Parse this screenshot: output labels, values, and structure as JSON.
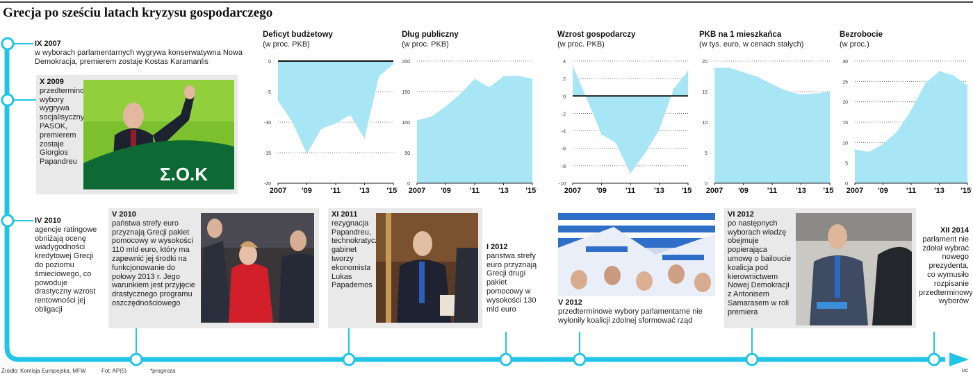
{
  "title": "Grecja po sześciu latach kryzysu gospodarczego",
  "colors": {
    "timeline": "#22c4e6",
    "area": "#a8e6f6",
    "box": "#e9e9e9",
    "zero": "#111111"
  },
  "events": {
    "e2007": {
      "date": "IX 2007",
      "text": "w wyborach parlamentarnych wygrywa konserwatywna Nowa Demokracja, premierem zostaje Kostas Karamanlis"
    },
    "e2009": {
      "date": "X 2009",
      "text": "przedterminowe wybory wygrywa socjalisyczny PASOK, premierem zostaje Giorgios Papandreu"
    },
    "e2010a": {
      "date": "IV 2010",
      "text": "agencje ratingowe obniżają ocenę wiadygodności kredytowej Grecji do poziomu śmieciowego, co powoduje drastyczny wzrost rentowności jej obligacji"
    },
    "e2010b": {
      "date": "V 2010",
      "text": "państwa strefy euro przyznają Grecji pakiet pomocowy w wysokości 110 mld euro, który ma zapewnić jej środki na funkcjonowanie do połowy 2013 r. Jego warunkiem jest przyjęcie drastycznego programu oszczędnościowego"
    },
    "e2011": {
      "date": "XI 2011",
      "text": "rezygnacja Papandreu, technokratyczny gabinet tworzy ekonomista Lukas Papademos"
    },
    "e2012a": {
      "date": "I 2012",
      "text": "panstwa strefy euro przyznają Grecji drugi pakiet pomocowy w wysokości 130 mld euro"
    },
    "e2012b": {
      "date": "V 2012",
      "text": "przedterminowe wybory parlamentarne nie wyłoniły koalicji zdolnej sformować rząd"
    },
    "e2012c": {
      "date": "VI 2012",
      "text": "po następnych wyborach władzę obejmuje popierająca umowę o bailoucie koalicja pod kierownictwem Nowej Demokracji z Antonisem Samarasem w roli premiera"
    },
    "e2014": {
      "date": "XII 2014",
      "text": "parlament nie zdołał wybrać nowego prezydenta, co wymusiło rozpisanie przedterminowych wyborów"
    }
  },
  "photo_banner_text": "Σ.Ο.Κ",
  "footer": {
    "source": "Źródło: Komisja Europejska, MFW",
    "photo": "Fot: AP(5)",
    "note": "*prognoza",
    "credit": "MC"
  },
  "chart_data": [
    {
      "type": "area",
      "title": "Deficyt budżetowy",
      "subtitle": "(w proc. PKB)",
      "x": [
        2007,
        2008,
        2009,
        2010,
        2011,
        2012,
        2013,
        2014,
        2015
      ],
      "y": [
        -6.5,
        -10,
        -15.2,
        -11.1,
        -10.2,
        -8.8,
        -12.7,
        -2.5,
        -0.5
      ],
      "ylim": [
        -20,
        0
      ],
      "yticks": [
        0,
        -5,
        -10,
        -15,
        -20
      ],
      "zero_line": 0,
      "xtick_labels": [
        "2007",
        "'09",
        "'11",
        "'13",
        "'15*"
      ]
    },
    {
      "type": "area",
      "title": "Dług publiczny",
      "subtitle": "(w proc. PKB)",
      "x": [
        2007,
        2008,
        2009,
        2010,
        2011,
        2012,
        2013,
        2014,
        2015
      ],
      "y": [
        103,
        109,
        126,
        146,
        171,
        157,
        175,
        176,
        171
      ],
      "ylim": [
        0,
        200
      ],
      "yticks": [
        200,
        150,
        100,
        50,
        0
      ],
      "xtick_labels": [
        "2007",
        "'09",
        "'11",
        "'13",
        "'15*"
      ]
    },
    {
      "type": "area",
      "title": "Wzrost gospodarczy",
      "subtitle": "(w proc. PKB)",
      "x": [
        2007,
        2008,
        2009,
        2010,
        2011,
        2012,
        2013,
        2014,
        2015
      ],
      "y": [
        3.5,
        -0.4,
        -4.4,
        -5.4,
        -8.9,
        -6.6,
        -3.9,
        0.8,
        2.9
      ],
      "ylim": [
        -10,
        4
      ],
      "yticks": [
        4,
        2,
        0,
        -2,
        -4,
        -6,
        -8,
        -10
      ],
      "zero_line": 0,
      "xtick_labels": [
        "2007",
        "'09",
        "'11",
        "'13",
        "'15*"
      ]
    },
    {
      "type": "area",
      "title": "PKB na 1 mieszkańca",
      "subtitle": "(w tys. euro, w cenach stałych)",
      "x": [
        2007,
        2008,
        2009,
        2010,
        2011,
        2012,
        2013,
        2014,
        2015
      ],
      "y": [
        18.9,
        18.9,
        18.2,
        17.4,
        16.2,
        15.1,
        14.5,
        14.7,
        15
      ],
      "ylim": [
        0,
        20
      ],
      "yticks": [
        20,
        15,
        10,
        5,
        0
      ],
      "xtick_labels": [
        "2007",
        "'09",
        "'11",
        "'13",
        "'15*"
      ]
    },
    {
      "type": "area",
      "title": "Bezrobocie",
      "subtitle": "(w proc.)",
      "x": [
        2007,
        2008,
        2009,
        2010,
        2011,
        2012,
        2013,
        2014,
        2015
      ],
      "y": [
        8.3,
        7.7,
        9.6,
        12.7,
        17.9,
        24.5,
        27.5,
        26.5,
        24
      ],
      "ylim": [
        0,
        30
      ],
      "yticks": [
        30,
        25,
        20,
        15,
        10,
        5,
        0
      ],
      "xtick_labels": [
        "2007",
        "'09",
        "'11",
        "'13",
        "'15*"
      ]
    }
  ]
}
